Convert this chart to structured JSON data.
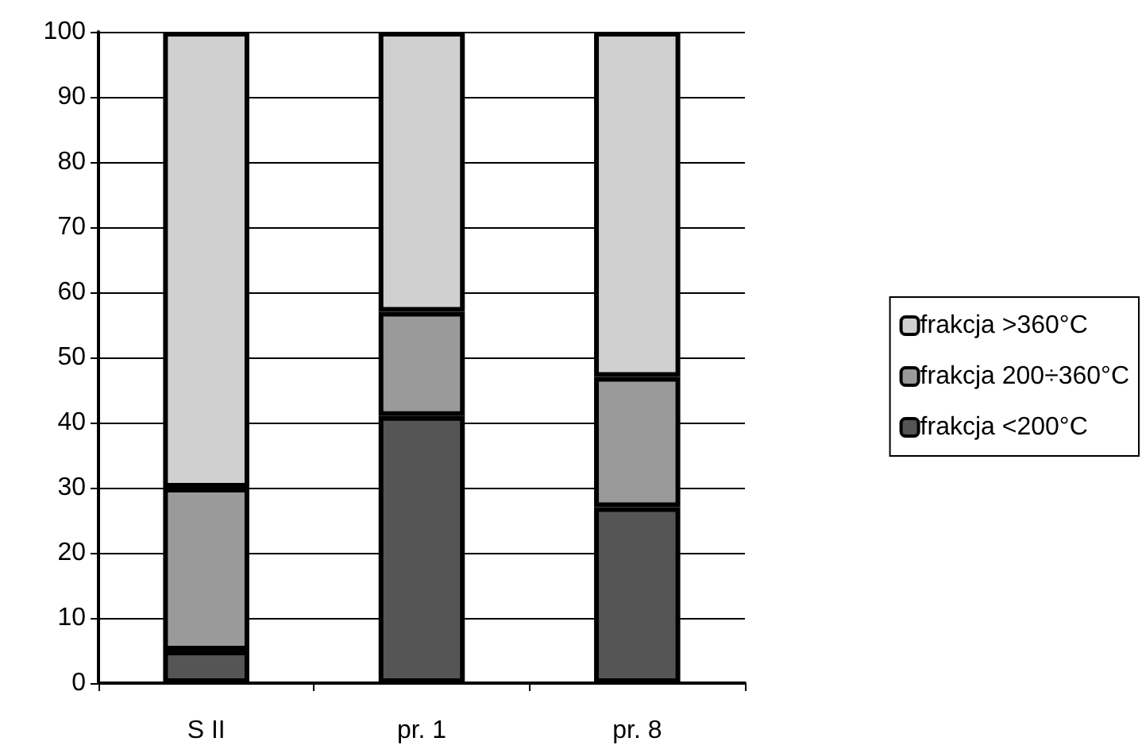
{
  "chart_data": {
    "type": "bar",
    "stacked": true,
    "categories": [
      "S II",
      "pr. 1",
      "pr. 8"
    ],
    "series": [
      {
        "name": "frakcja <200°C",
        "color": "#555555",
        "values": [
          5,
          41,
          27
        ]
      },
      {
        "name": "frakcja 200÷360°C",
        "color": "#9a9a9a",
        "values": [
          25,
          16,
          20
        ]
      },
      {
        "name": "frakcja >360°C",
        "color": "#d0d0d0",
        "values": [
          70,
          43,
          53
        ]
      }
    ],
    "ylim": [
      0,
      100
    ],
    "yticks": [
      0,
      10,
      20,
      30,
      40,
      50,
      60,
      70,
      80,
      90,
      100
    ],
    "grid": "y",
    "legend": "right"
  }
}
